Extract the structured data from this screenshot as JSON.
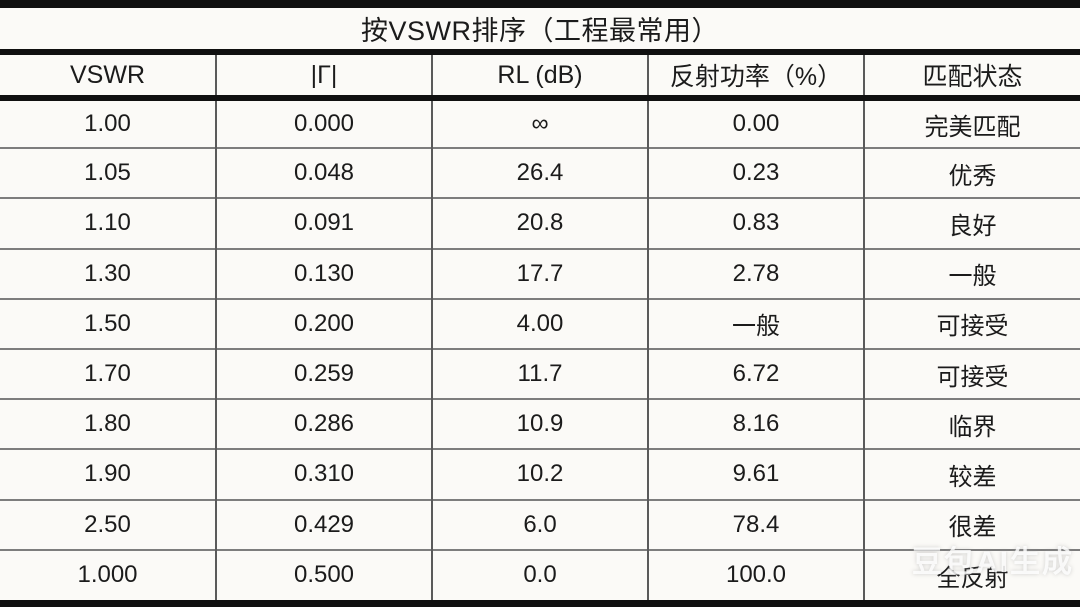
{
  "title": "按VSWR排序（工程最常用）",
  "watermark": "豆包AI生成",
  "colors": {
    "background": "#fbfaf7",
    "text": "#1b1b1b",
    "thick_border": "#101010",
    "column_divider": "#5a5a5a",
    "row_divider": "#7d7d7d",
    "watermark_text": "rgba(255,255,255,0.82)"
  },
  "table": {
    "headers": [
      "VSWR",
      "|Γ|",
      "RL (dB)",
      "反射功率（%）",
      "匹配状态"
    ],
    "rows": [
      [
        "1.00",
        "0.000",
        "∞",
        "0.00",
        "完美匹配"
      ],
      [
        "1.05",
        "0.048",
        "26.4",
        "0.23",
        "优秀"
      ],
      [
        "1.10",
        "0.091",
        "20.8",
        "0.83",
        "良好"
      ],
      [
        "1.30",
        "0.130",
        "17.7",
        "2.78",
        "一般"
      ],
      [
        "1.50",
        "0.200",
        "4.00",
        "一般",
        "可接受"
      ],
      [
        "1.70",
        "0.259",
        "11.7",
        "6.72",
        "可接受"
      ],
      [
        "1.80",
        "0.286",
        "10.9",
        "8.16",
        "临界"
      ],
      [
        "1.90",
        "0.310",
        "10.2",
        "9.61",
        "较差"
      ],
      [
        "2.50",
        "0.429",
        "6.0",
        "78.4",
        "很差"
      ],
      [
        "1.000",
        "0.500",
        "0.0",
        "100.0",
        "全反射"
      ]
    ]
  },
  "chart_data": {
    "type": "table",
    "title": "按VSWR排序（工程最常用）",
    "columns": [
      "VSWR",
      "|Γ|",
      "RL (dB)",
      "反射功率（%）",
      "匹配状态"
    ],
    "rows": [
      [
        "1.00",
        "0.000",
        "∞",
        "0.00",
        "完美匹配"
      ],
      [
        "1.05",
        "0.048",
        "26.4",
        "0.23",
        "优秀"
      ],
      [
        "1.10",
        "0.091",
        "20.8",
        "0.83",
        "良好"
      ],
      [
        "1.30",
        "0.130",
        "17.7",
        "2.78",
        "一般"
      ],
      [
        "1.50",
        "0.200",
        "4.00",
        "一般",
        "可接受"
      ],
      [
        "1.70",
        "0.259",
        "11.7",
        "6.72",
        "可接受"
      ],
      [
        "1.80",
        "0.286",
        "10.9",
        "8.16",
        "临界"
      ],
      [
        "1.90",
        "0.310",
        "10.2",
        "9.61",
        "较差"
      ],
      [
        "2.50",
        "0.429",
        "6.0",
        "78.4",
        "很差"
      ],
      [
        "1.000",
        "0.500",
        "0.0",
        "100.0",
        "全反射"
      ]
    ]
  }
}
